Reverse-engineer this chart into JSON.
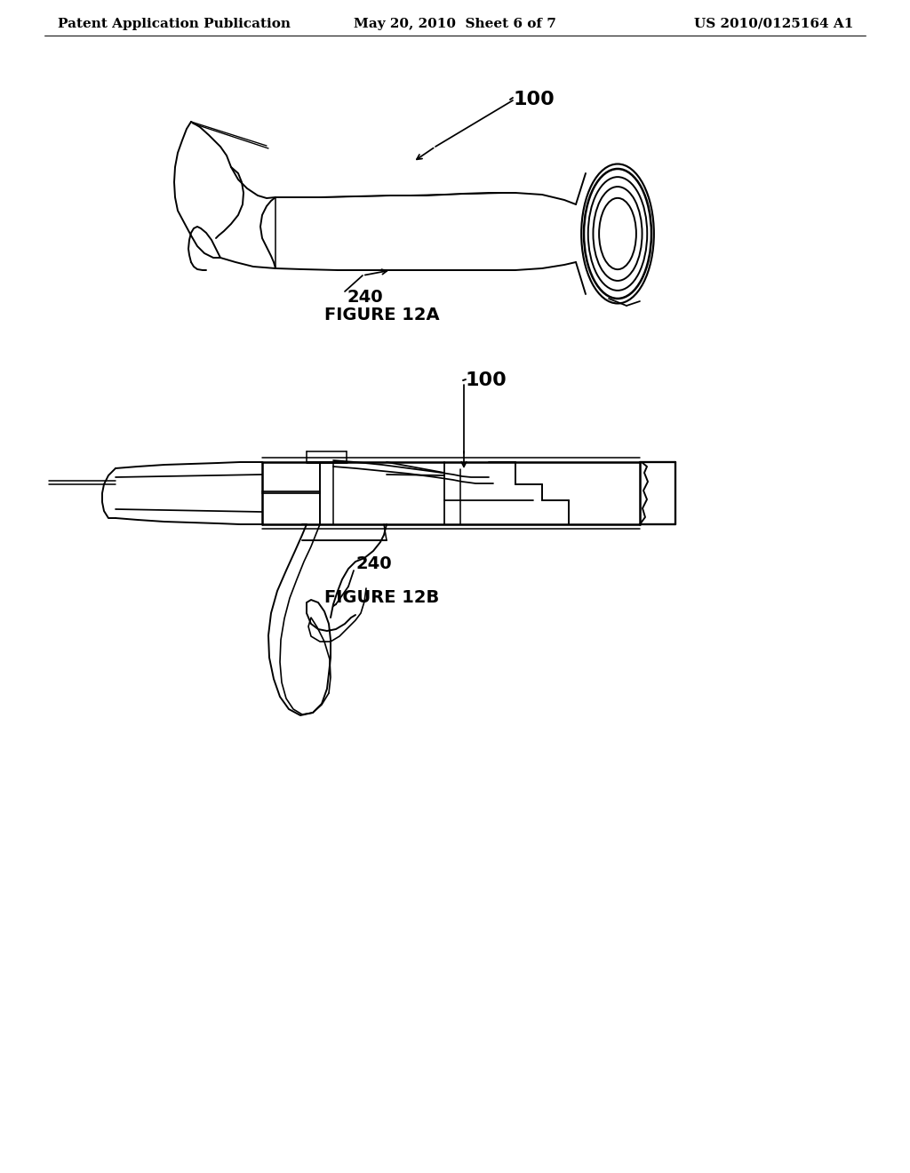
{
  "background_color": "#ffffff",
  "header_left": "Patent Application Publication",
  "header_center": "May 20, 2010  Sheet 6 of 7",
  "header_right": "US 2010/0125164 A1",
  "header_fontsize": 11,
  "figure_label_12a": "FIGURE 12A",
  "figure_label_12b": "FIGURE 12B",
  "label_100_12a": "100",
  "label_240_12a": "240",
  "label_100_12b": "100",
  "label_240_12b": "240",
  "line_color": "#000000",
  "line_width": 1.4,
  "label_fontsize": 14,
  "fig_label_fontsize": 14
}
